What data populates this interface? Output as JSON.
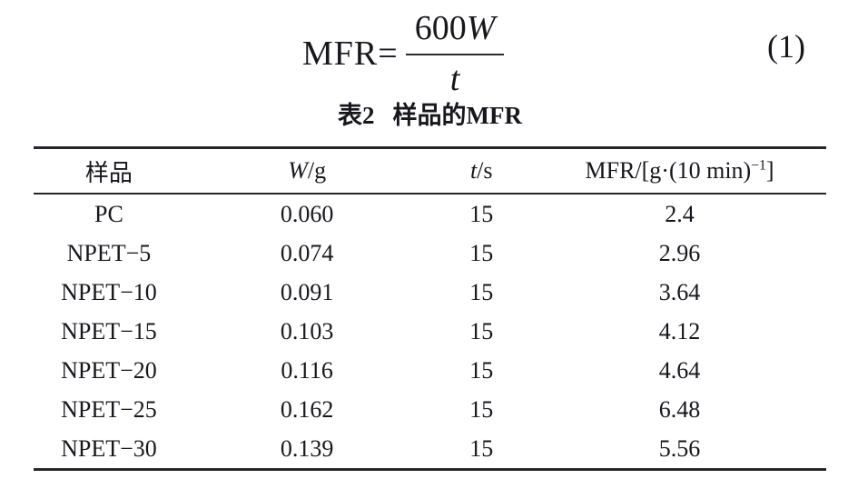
{
  "equation": {
    "lhs": "MFR=",
    "numerator_coefficient": "600",
    "numerator_variable": "W",
    "denominator_variable": "t",
    "equation_number": "(1)"
  },
  "table_caption": {
    "label": "表2",
    "title": "样品的MFR"
  },
  "table": {
    "columns": [
      {
        "italic": "",
        "text": "样品",
        "sup": "",
        "tail": ""
      },
      {
        "italic": "W",
        "text": "/g",
        "sup": "",
        "tail": ""
      },
      {
        "italic": "t",
        "text": "/s",
        "sup": "",
        "tail": ""
      },
      {
        "italic": "",
        "text": "MFR/[g·(10 min)",
        "sup": "−1",
        "tail": "]"
      }
    ],
    "rows": [
      {
        "cells": [
          "PC",
          "0.060",
          "15",
          "2.4"
        ]
      },
      {
        "cells": [
          "NPET−5",
          "0.074",
          "15",
          "2.96"
        ]
      },
      {
        "cells": [
          "NPET−10",
          "0.091",
          "15",
          "3.64"
        ]
      },
      {
        "cells": [
          "NPET−15",
          "0.103",
          "15",
          "4.12"
        ]
      },
      {
        "cells": [
          "NPET−20",
          "0.116",
          "15",
          "4.64"
        ]
      },
      {
        "cells": [
          "NPET−25",
          "0.162",
          "15",
          "6.48"
        ]
      },
      {
        "cells": [
          "NPET−30",
          "0.139",
          "15",
          "5.56"
        ]
      }
    ]
  }
}
